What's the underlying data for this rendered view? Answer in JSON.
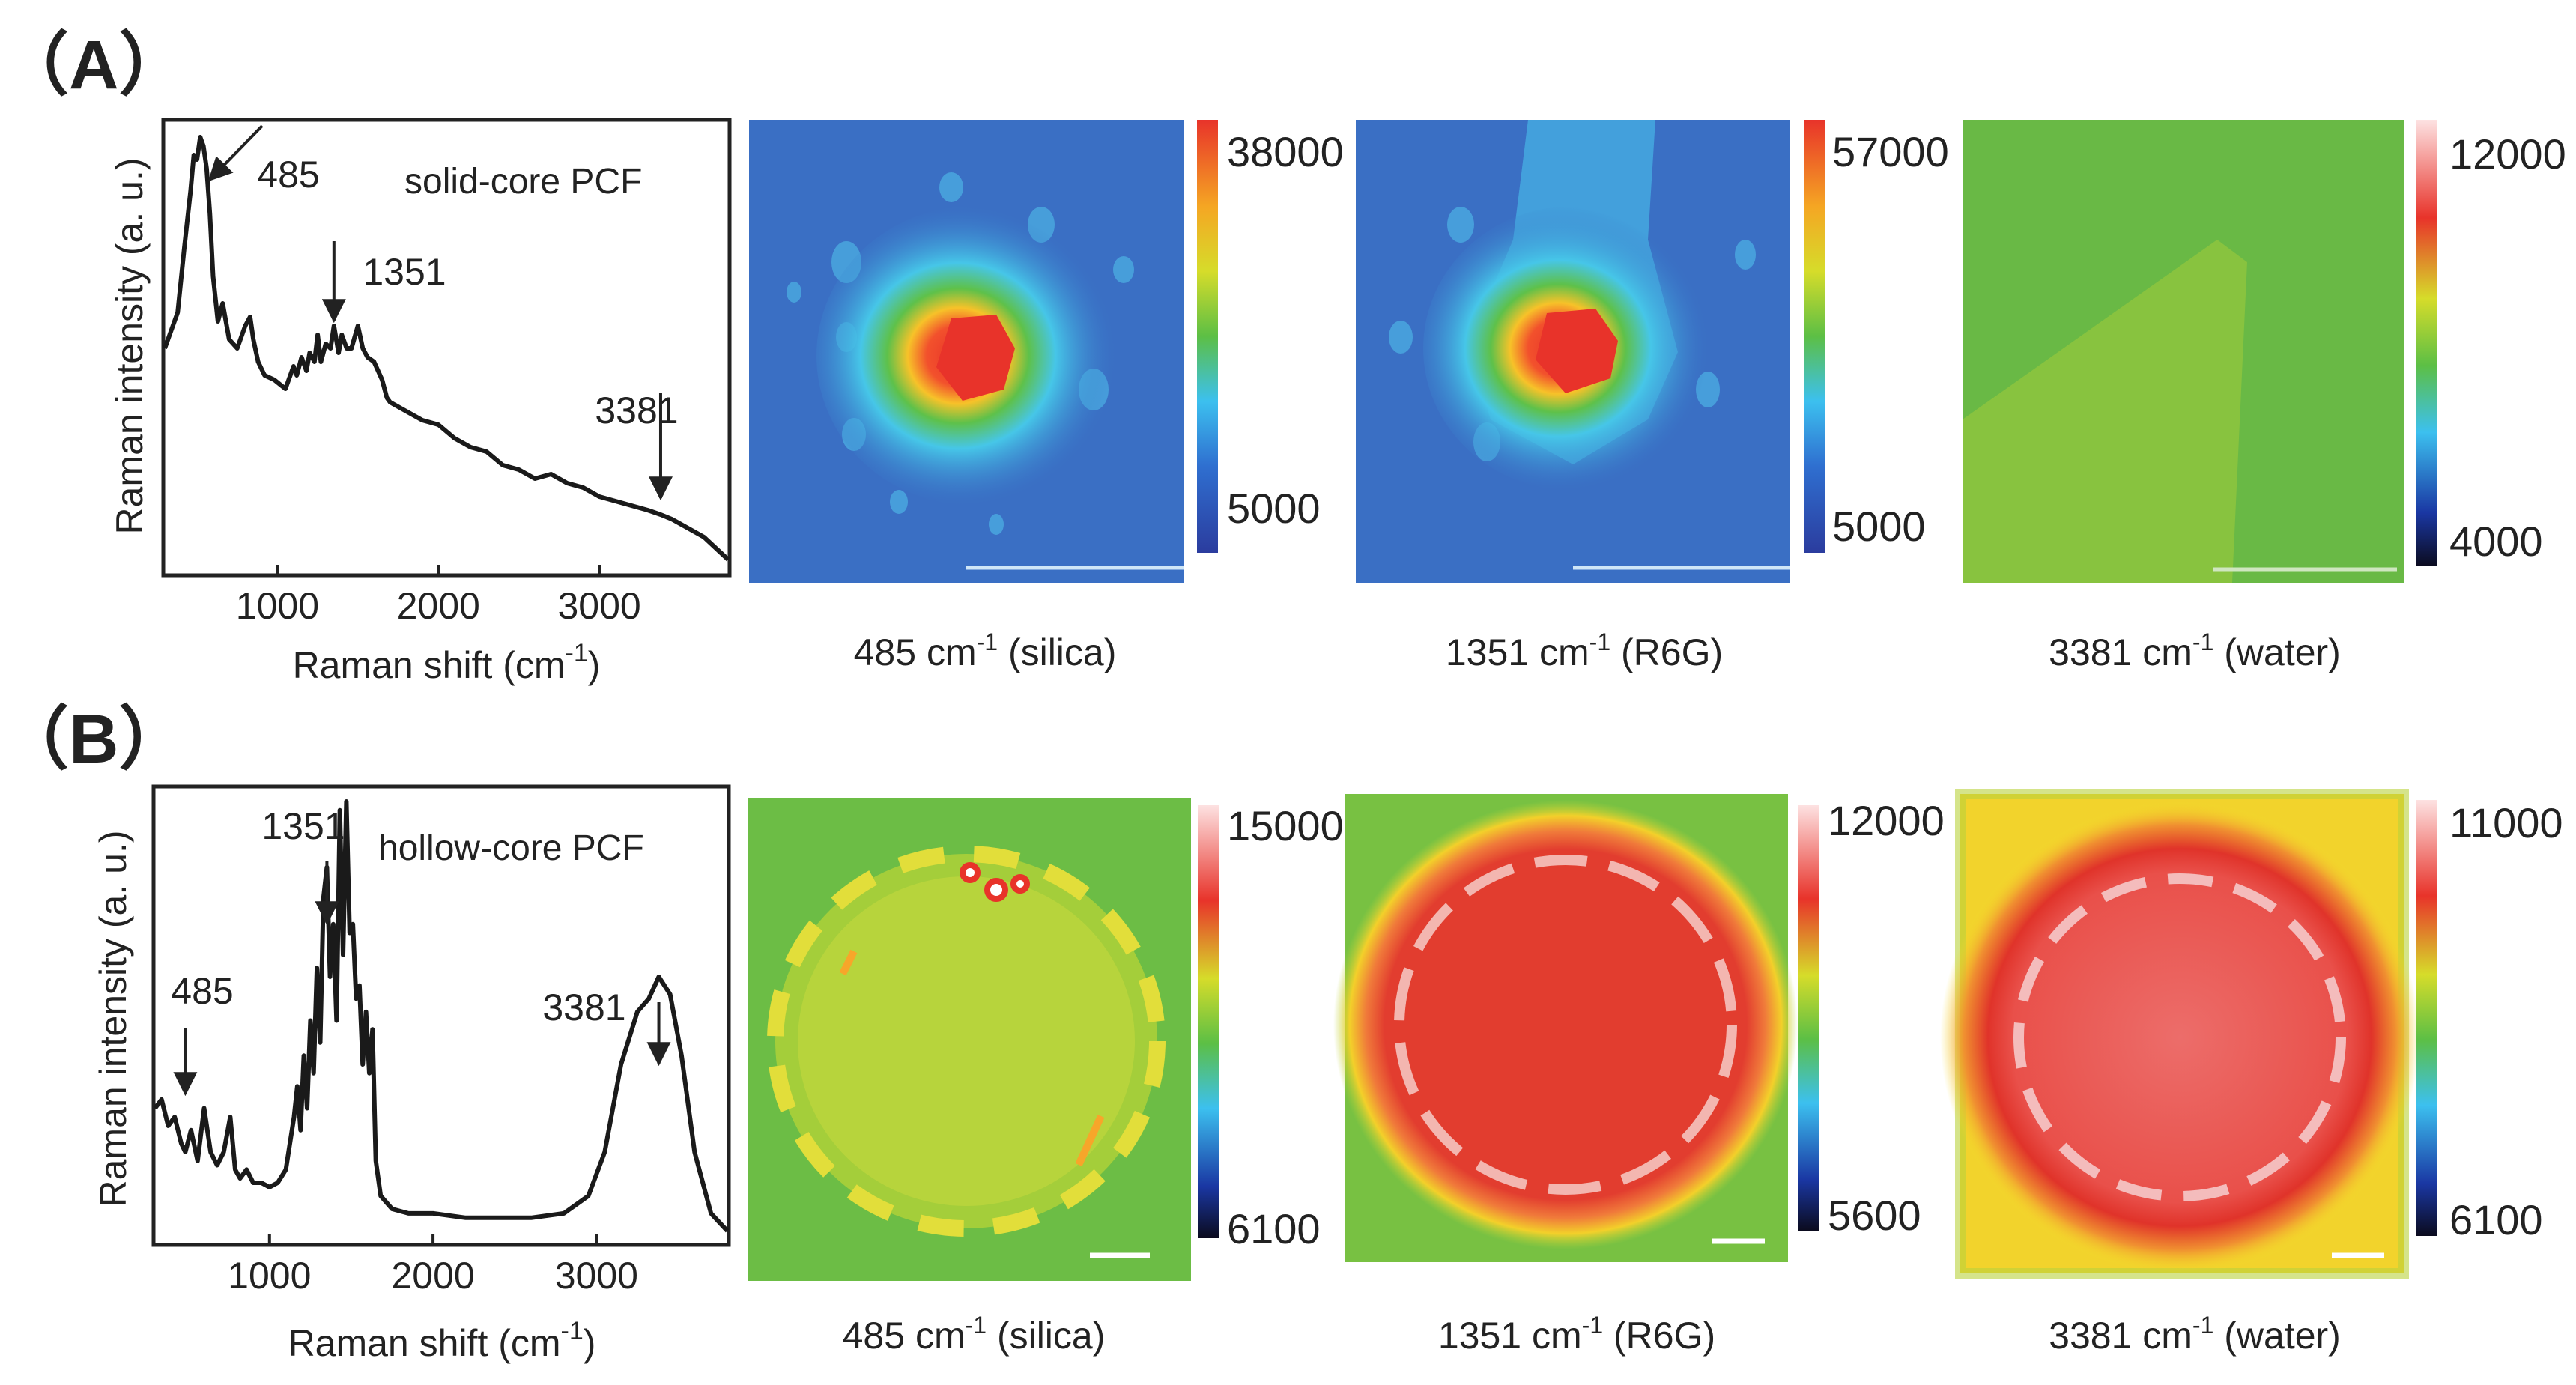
{
  "panels": [
    {
      "label": "（A）",
      "chart_data": {
        "type": "line",
        "title": "solid-core PCF",
        "xlabel": "Raman shift (cm-1)",
        "ylabel": "Raman intensity (a. u.)",
        "xlim": [
          300,
          3800
        ],
        "ylim": [
          0,
          1
        ],
        "x_ticks": [
          1000,
          2000,
          3000
        ],
        "x": [
          300,
          380,
          420,
          460,
          480,
          500,
          520,
          540,
          560,
          580,
          600,
          630,
          660,
          700,
          750,
          800,
          830,
          850,
          880,
          920,
          980,
          1050,
          1100,
          1120,
          1150,
          1180,
          1200,
          1230,
          1250,
          1270,
          1300,
          1330,
          1351,
          1380,
          1400,
          1430,
          1460,
          1500,
          1530,
          1560,
          1600,
          1650,
          1680,
          1700,
          1800,
          1900,
          2000,
          2100,
          2200,
          2300,
          2400,
          2500,
          2600,
          2700,
          2800,
          2900,
          3000,
          3100,
          3200,
          3300,
          3381,
          3450,
          3550,
          3650,
          3800
        ],
        "y": [
          0.5,
          0.58,
          0.72,
          0.85,
          0.93,
          0.92,
          0.97,
          0.95,
          0.9,
          0.8,
          0.66,
          0.56,
          0.6,
          0.52,
          0.5,
          0.55,
          0.57,
          0.52,
          0.47,
          0.44,
          0.43,
          0.41,
          0.46,
          0.44,
          0.48,
          0.45,
          0.49,
          0.47,
          0.53,
          0.47,
          0.51,
          0.5,
          0.55,
          0.49,
          0.53,
          0.5,
          0.5,
          0.55,
          0.5,
          0.48,
          0.47,
          0.43,
          0.39,
          0.38,
          0.36,
          0.34,
          0.33,
          0.3,
          0.28,
          0.27,
          0.24,
          0.23,
          0.21,
          0.22,
          0.2,
          0.19,
          0.17,
          0.16,
          0.15,
          0.14,
          0.13,
          0.12,
          0.1,
          0.08,
          0.03
        ],
        "annotations": [
          {
            "text": "485",
            "x": 485
          },
          {
            "text": "1351",
            "x": 1351
          },
          {
            "text": "3381",
            "x": 3381
          }
        ]
      },
      "maps": [
        {
          "caption_prefix": "485 cm",
          "caption_sup": "-1",
          "caption_suffix": " (silica)",
          "colorbar_max": "38000",
          "colorbar_min": "5000",
          "colormap": "jet",
          "scale_bar": true
        },
        {
          "caption_prefix": "1351 cm",
          "caption_sup": "-1",
          "caption_suffix": " (R6G)",
          "colorbar_max": "57000",
          "colorbar_min": "5000",
          "colormap": "jet",
          "scale_bar": true
        },
        {
          "caption_prefix": "3381 cm",
          "caption_sup": "-1",
          "caption_suffix": " (water)",
          "colorbar_max": "12000",
          "colorbar_min": "4000",
          "colormap": "jet-white",
          "scale_bar": true
        }
      ]
    },
    {
      "label": "（B）",
      "chart_data": {
        "type": "line",
        "title": "hollow-core PCF",
        "xlabel": "Raman shift (cm-1)",
        "ylabel": "Raman intensity (a. u.)",
        "xlim": [
          300,
          3800
        ],
        "ylim": [
          0,
          1
        ],
        "x_ticks": [
          1000,
          2000,
          3000
        ],
        "x": [
          300,
          340,
          380,
          420,
          460,
          485,
          520,
          560,
          600,
          640,
          680,
          720,
          760,
          790,
          820,
          860,
          900,
          950,
          1000,
          1050,
          1100,
          1150,
          1170,
          1190,
          1210,
          1230,
          1250,
          1270,
          1290,
          1310,
          1330,
          1351,
          1370,
          1390,
          1410,
          1430,
          1450,
          1470,
          1490,
          1510,
          1530,
          1550,
          1570,
          1590,
          1610,
          1630,
          1650,
          1680,
          1750,
          1850,
          2000,
          2200,
          2400,
          2600,
          2800,
          2950,
          3050,
          3150,
          3250,
          3320,
          3381,
          3450,
          3520,
          3600,
          3700,
          3800
        ],
        "y": [
          0.3,
          0.32,
          0.26,
          0.28,
          0.22,
          0.2,
          0.25,
          0.18,
          0.3,
          0.2,
          0.17,
          0.2,
          0.28,
          0.16,
          0.14,
          0.16,
          0.13,
          0.13,
          0.12,
          0.13,
          0.16,
          0.28,
          0.35,
          0.25,
          0.42,
          0.3,
          0.5,
          0.38,
          0.62,
          0.45,
          0.78,
          0.85,
          0.6,
          0.72,
          0.5,
          0.98,
          0.65,
          1.0,
          0.7,
          0.72,
          0.55,
          0.58,
          0.4,
          0.52,
          0.38,
          0.48,
          0.18,
          0.1,
          0.07,
          0.06,
          0.06,
          0.05,
          0.05,
          0.05,
          0.06,
          0.1,
          0.2,
          0.4,
          0.52,
          0.55,
          0.6,
          0.56,
          0.42,
          0.2,
          0.06,
          0.02
        ],
        "annotations": [
          {
            "text": "485",
            "x": 485
          },
          {
            "text": "1351",
            "x": 1351
          },
          {
            "text": "3381",
            "x": 3381
          }
        ]
      },
      "maps": [
        {
          "caption_prefix": "485 cm",
          "caption_sup": "-1",
          "caption_suffix": " (silica)",
          "colorbar_max": "15000",
          "colorbar_min": "6100",
          "colormap": "jet-white",
          "scale_bar": true
        },
        {
          "caption_prefix": "1351 cm",
          "caption_sup": "-1",
          "caption_suffix": " (R6G)",
          "colorbar_max": "12000",
          "colorbar_min": "5600",
          "colormap": "jet-white",
          "scale_bar": true
        },
        {
          "caption_prefix": "3381 cm",
          "caption_sup": "-1",
          "caption_suffix": " (water)",
          "colorbar_max": "11000",
          "colorbar_min": "6100",
          "colormap": "jet-white",
          "scale_bar": true
        }
      ]
    }
  ]
}
